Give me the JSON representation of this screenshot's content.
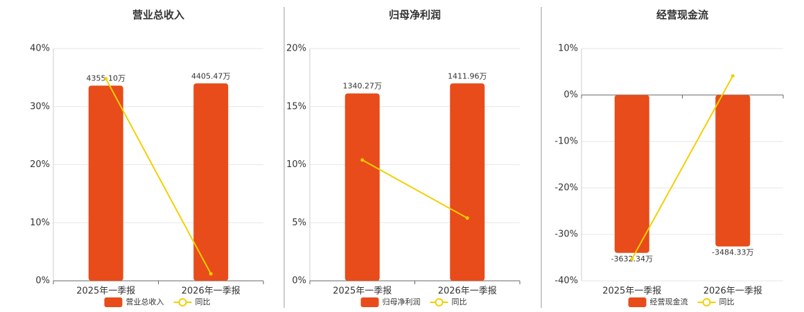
{
  "chart_data": [
    {
      "type": "bar",
      "title": "营业总收入",
      "categories": [
        "2025年一季报",
        "2026年一季报"
      ],
      "series": [
        {
          "name": "营业总收入",
          "color": "#e84c1a",
          "values": [
            4355.1,
            4405.47
          ],
          "value_labels": [
            "4355.10万",
            "4405.47万"
          ]
        },
        {
          "name": "同比",
          "type": "line",
          "color": "#f2d000",
          "values": [
            34.8,
            1.2
          ]
        }
      ],
      "ylim": [
        0,
        40
      ],
      "yticks": [
        {
          "value": 0,
          "label": "0%"
        },
        {
          "value": 10,
          "label": "10%"
        },
        {
          "value": 20,
          "label": "20%"
        },
        {
          "value": 30,
          "label": "30%"
        },
        {
          "value": 40,
          "label": "40%"
        }
      ],
      "grid": true
    },
    {
      "type": "bar",
      "title": "归母净利润",
      "categories": [
        "2025年一季报",
        "2026年一季报"
      ],
      "series": [
        {
          "name": "归母净利润",
          "color": "#e84c1a",
          "values": [
            1340.27,
            1411.96
          ],
          "value_labels": [
            "1340.27万",
            "1411.96万"
          ]
        },
        {
          "name": "同比",
          "type": "line",
          "color": "#f2d000",
          "values": [
            10.4,
            5.4
          ]
        }
      ],
      "ylim": [
        0,
        20
      ],
      "yticks": [
        {
          "value": 0,
          "label": "0%"
        },
        {
          "value": 5,
          "label": "5%"
        },
        {
          "value": 10,
          "label": "10%"
        },
        {
          "value": 15,
          "label": "15%"
        },
        {
          "value": 20,
          "label": "20%"
        }
      ],
      "grid": true
    },
    {
      "type": "bar",
      "title": "经营现金流",
      "categories": [
        "2025年一季报",
        "2026年一季报"
      ],
      "series": [
        {
          "name": "经营现金流",
          "color": "#e84c1a",
          "values": [
            -3632.34,
            -3484.33
          ],
          "value_labels": [
            "-3632.34万",
            "-3484.33万"
          ]
        },
        {
          "name": "同比",
          "type": "line",
          "color": "#f2d000",
          "values": [
            -35.3,
            4.1
          ]
        }
      ],
      "ylim": [
        -40,
        10
      ],
      "yticks": [
        {
          "value": -40,
          "label": "-40%"
        },
        {
          "value": -30,
          "label": "-30%"
        },
        {
          "value": -20,
          "label": "-20%"
        },
        {
          "value": -10,
          "label": "-10%"
        },
        {
          "value": 0,
          "label": "0%"
        },
        {
          "value": 10,
          "label": "10%"
        }
      ],
      "grid": true
    }
  ]
}
